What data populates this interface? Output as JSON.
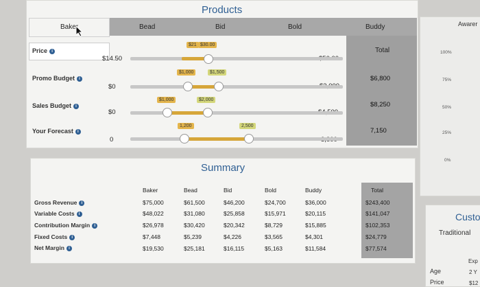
{
  "products": {
    "title": "Products",
    "columns": [
      "Baker",
      "Bead",
      "Bid",
      "Bold",
      "Buddy"
    ],
    "total_header": "Total",
    "rows": [
      {
        "label": "Price",
        "min": "$14.50",
        "max": "$50.00",
        "tags": [
          "$21",
          "$30.00"
        ],
        "total": ""
      },
      {
        "label": "Promo Budget",
        "min": "$0",
        "max": "$3,000",
        "tags": [
          "$1,000",
          "$1,500"
        ],
        "total": "$6,800"
      },
      {
        "label": "Sales Budget",
        "min": "$0",
        "max": "$4,500",
        "tags": [
          "$1,000",
          "$2,000"
        ],
        "total": "$8,250"
      },
      {
        "label": "Your Forecast",
        "min": "0",
        "max": "3,800",
        "tags": [
          "1,200",
          "2,500"
        ],
        "total": "7,150"
      }
    ]
  },
  "summary": {
    "title": "Summary",
    "columns": [
      "Baker",
      "Bead",
      "Bid",
      "Bold",
      "Buddy"
    ],
    "total_header": "Total",
    "rows": [
      {
        "label": "Gross Revenue",
        "values": [
          "$75,000",
          "$61,500",
          "$46,200",
          "$24,700",
          "$36,000"
        ],
        "total": "$243,400"
      },
      {
        "label": "Variable Costs",
        "values": [
          "$48,022",
          "$31,080",
          "$25,858",
          "$15,971",
          "$20,115"
        ],
        "total": "$141,047"
      },
      {
        "label": "Contribution Margin",
        "values": [
          "$26,978",
          "$30,420",
          "$20,342",
          "$8,729",
          "$15,885"
        ],
        "total": "$102,353"
      },
      {
        "label": "Fixed Costs",
        "values": [
          "$7,448",
          "$5,239",
          "$4,226",
          "$3,565",
          "$4,301"
        ],
        "total": "$24,779"
      },
      {
        "label": "Net Margin",
        "values": [
          "$19,530",
          "$25,181",
          "$16,115",
          "$5,163",
          "$11,584"
        ],
        "total": "$77,574"
      }
    ]
  },
  "awareness": {
    "title": "Awarer",
    "ticks": [
      "100%",
      "75%",
      "50%",
      "25%",
      "0%"
    ]
  },
  "customer": {
    "title": "Custo",
    "subtitle": "Traditional",
    "age_label": "Age",
    "price_label": "Price",
    "exp_label": "Exp",
    "age_val": "2 Y",
    "price_val": "$12"
  },
  "colors": {
    "accent_blue": "#2f5f93",
    "slider_gold": "#d6a63a",
    "tag_gold": "#e4b54c",
    "tag_green": "#d4d77b"
  }
}
